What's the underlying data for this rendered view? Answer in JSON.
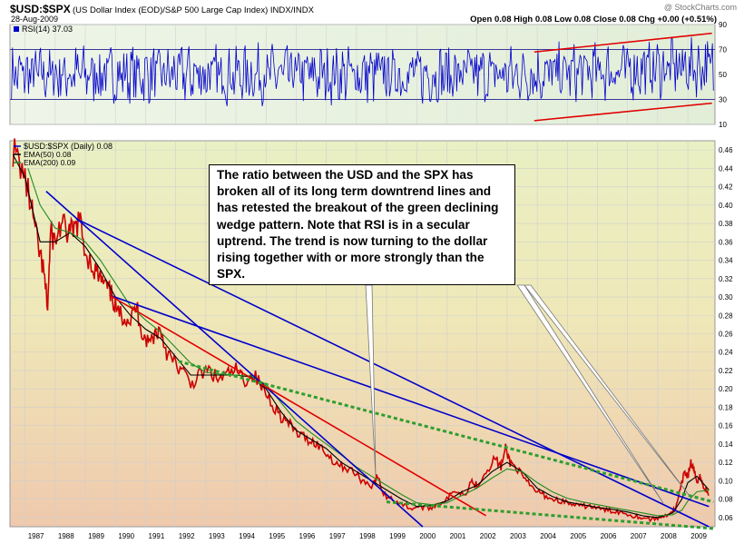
{
  "header": {
    "symbol": "$USD:$SPX",
    "description": "(US Dollar Index (EOD)/S&P 500 Large Cap Index) INDX/INDX",
    "date": "28-Aug-2009",
    "ohlc": "Open 0.08  High 0.08  Low 0.08  Close 0.08  Chg +0.00 (+0.51%)",
    "watermark": "@ StockCharts.com"
  },
  "rsi_panel": {
    "label": "RSI(14) 37.03",
    "y_ticks": [
      "90",
      "70",
      "50",
      "30",
      "10"
    ]
  },
  "annotation": "The ratio between the USD and the SPX has broken all of its long term downtrend lines and has retested the breakout of the green declining wedge pattern.  Note that RSI is in a secular uptrend.  The trend is now turning to the dollar rising together with or more strongly than the SPX.",
  "colors": {
    "price": "#cc0000",
    "ema50": "#000000",
    "ema200": "#228b22",
    "downtrend": "#0000cc",
    "trend_red": "#e00000",
    "wedge": "#2e9e2e",
    "rsi": "#0000cc"
  },
  "chart_data": [
    {
      "type": "line",
      "title": "",
      "series": [
        {
          "name": "RSI(14)",
          "color": "#0000cc"
        }
      ],
      "ylim": [
        10,
        90
      ],
      "reference_lines": [
        70,
        30
      ],
      "last_value": 37.03,
      "trendline_channel": {
        "upper": [
          [
            2003.9,
            68
          ],
          [
            2009.8,
            83
          ]
        ],
        "lower": [
          [
            2003.9,
            13
          ],
          [
            2009.8,
            27
          ]
        ]
      }
    },
    {
      "type": "line",
      "title": "",
      "x_ticks": [
        "1987",
        "1988",
        "1989",
        "1990",
        "1991",
        "1992",
        "1993",
        "1994",
        "1995",
        "1996",
        "1997",
        "1998",
        "1999",
        "2000",
        "2001",
        "2002",
        "2003",
        "2004",
        "2005",
        "2006",
        "2007",
        "2008",
        "2009"
      ],
      "y_ticks": [
        "0.46",
        "0.44",
        "0.42",
        "0.40",
        "0.38",
        "0.36",
        "0.34",
        "0.32",
        "0.30",
        "0.28",
        "0.26",
        "0.24",
        "0.22",
        "0.20",
        "0.18",
        "0.16",
        "0.14",
        "0.12",
        "0.10",
        "0.08",
        "0.06"
      ],
      "ylim": [
        0.05,
        0.47
      ],
      "legend": [
        "$USD:$SPX (Daily) 0.08",
        "EMA(50) 0.08",
        "EMA(200) 0.09"
      ],
      "series": [
        {
          "name": "$USD:$SPX (Daily)",
          "color": "#cc0000",
          "points": [
            [
              1986.6,
              0.46
            ],
            [
              1986.9,
              0.44
            ],
            [
              1987.2,
              0.4
            ],
            [
              1987.4,
              0.36
            ],
            [
              1987.6,
              0.33
            ],
            [
              1987.75,
              0.29
            ],
            [
              1987.85,
              0.37
            ],
            [
              1988.0,
              0.36
            ],
            [
              1988.2,
              0.38
            ],
            [
              1988.4,
              0.37
            ],
            [
              1988.6,
              0.37
            ],
            [
              1988.8,
              0.385
            ],
            [
              1989.0,
              0.35
            ],
            [
              1989.3,
              0.33
            ],
            [
              1989.5,
              0.32
            ],
            [
              1989.7,
              0.31
            ],
            [
              1989.9,
              0.3
            ],
            [
              1990.1,
              0.28
            ],
            [
              1990.3,
              0.28
            ],
            [
              1990.5,
              0.275
            ],
            [
              1990.7,
              0.29
            ],
            [
              1990.9,
              0.26
            ],
            [
              1991.1,
              0.25
            ],
            [
              1991.3,
              0.26
            ],
            [
              1991.5,
              0.265
            ],
            [
              1991.7,
              0.24
            ],
            [
              1991.9,
              0.23
            ],
            [
              1992.2,
              0.22
            ],
            [
              1992.5,
              0.205
            ],
            [
              1992.8,
              0.215
            ],
            [
              1993.1,
              0.22
            ],
            [
              1993.4,
              0.21
            ],
            [
              1993.7,
              0.215
            ],
            [
              1994.0,
              0.22
            ],
            [
              1994.3,
              0.21
            ],
            [
              1994.6,
              0.215
            ],
            [
              1994.9,
              0.2
            ],
            [
              1995.2,
              0.185
            ],
            [
              1995.5,
              0.17
            ],
            [
              1995.8,
              0.16
            ],
            [
              1996.1,
              0.15
            ],
            [
              1996.4,
              0.145
            ],
            [
              1996.7,
              0.14
            ],
            [
              1997.0,
              0.13
            ],
            [
              1997.3,
              0.12
            ],
            [
              1997.6,
              0.115
            ],
            [
              1997.9,
              0.11
            ],
            [
              1998.2,
              0.1
            ],
            [
              1998.5,
              0.095
            ],
            [
              1998.7,
              0.105
            ],
            [
              1998.9,
              0.085
            ],
            [
              1999.2,
              0.08
            ],
            [
              1999.5,
              0.075
            ],
            [
              1999.8,
              0.07
            ],
            [
              2000.1,
              0.072
            ],
            [
              2000.4,
              0.07
            ],
            [
              2000.7,
              0.075
            ],
            [
              2001.0,
              0.08
            ],
            [
              2001.3,
              0.09
            ],
            [
              2001.6,
              0.085
            ],
            [
              2001.8,
              0.1
            ],
            [
              2002.0,
              0.095
            ],
            [
              2002.3,
              0.11
            ],
            [
              2002.6,
              0.125
            ],
            [
              2002.8,
              0.115
            ],
            [
              2002.95,
              0.135
            ],
            [
              2003.1,
              0.12
            ],
            [
              2003.3,
              0.115
            ],
            [
              2003.6,
              0.1
            ],
            [
              2003.9,
              0.09
            ],
            [
              2004.2,
              0.085
            ],
            [
              2004.5,
              0.08
            ],
            [
              2004.8,
              0.078
            ],
            [
              2005.1,
              0.075
            ],
            [
              2005.4,
              0.072
            ],
            [
              2005.7,
              0.073
            ],
            [
              2006.0,
              0.07
            ],
            [
              2006.3,
              0.068
            ],
            [
              2006.6,
              0.067
            ],
            [
              2006.9,
              0.065
            ],
            [
              2007.2,
              0.062
            ],
            [
              2007.5,
              0.06
            ],
            [
              2007.8,
              0.058
            ],
            [
              2008.1,
              0.06
            ],
            [
              2008.4,
              0.065
            ],
            [
              2008.6,
              0.07
            ],
            [
              2008.75,
              0.09
            ],
            [
              2008.9,
              0.11
            ],
            [
              2009.0,
              0.105
            ],
            [
              2009.1,
              0.12
            ],
            [
              2009.2,
              0.11
            ],
            [
              2009.3,
              0.1
            ],
            [
              2009.4,
              0.105
            ],
            [
              2009.5,
              0.095
            ],
            [
              2009.6,
              0.09
            ],
            [
              2009.7,
              0.085
            ]
          ]
        },
        {
          "name": "EMA(50)",
          "color": "#000000",
          "points": [
            [
              1986.6,
              0.455
            ],
            [
              1987.0,
              0.43
            ],
            [
              1987.5,
              0.36
            ],
            [
              1988.0,
              0.36
            ],
            [
              1988.5,
              0.37
            ],
            [
              1989.0,
              0.355
            ],
            [
              1989.5,
              0.33
            ],
            [
              1990.0,
              0.3
            ],
            [
              1990.5,
              0.28
            ],
            [
              1991.0,
              0.265
            ],
            [
              1991.5,
              0.255
            ],
            [
              1992.0,
              0.235
            ],
            [
              1992.5,
              0.215
            ],
            [
              1993.0,
              0.215
            ],
            [
              1993.5,
              0.215
            ],
            [
              1994.0,
              0.215
            ],
            [
              1994.5,
              0.213
            ],
            [
              1995.0,
              0.2
            ],
            [
              1995.5,
              0.175
            ],
            [
              1996.0,
              0.155
            ],
            [
              1996.5,
              0.145
            ],
            [
              1997.0,
              0.135
            ],
            [
              1997.5,
              0.12
            ],
            [
              1998.0,
              0.11
            ],
            [
              1998.5,
              0.1
            ],
            [
              1999.0,
              0.09
            ],
            [
              1999.5,
              0.08
            ],
            [
              2000.0,
              0.072
            ],
            [
              2000.5,
              0.073
            ],
            [
              2001.0,
              0.078
            ],
            [
              2001.5,
              0.088
            ],
            [
              2002.0,
              0.095
            ],
            [
              2002.5,
              0.11
            ],
            [
              2003.0,
              0.12
            ],
            [
              2003.5,
              0.11
            ],
            [
              2004.0,
              0.092
            ],
            [
              2004.5,
              0.083
            ],
            [
              2005.0,
              0.077
            ],
            [
              2005.5,
              0.074
            ],
            [
              2006.0,
              0.071
            ],
            [
              2006.5,
              0.069
            ],
            [
              2007.0,
              0.066
            ],
            [
              2007.5,
              0.062
            ],
            [
              2008.0,
              0.06
            ],
            [
              2008.5,
              0.065
            ],
            [
              2008.8,
              0.08
            ],
            [
              2009.0,
              0.098
            ],
            [
              2009.3,
              0.105
            ],
            [
              2009.7,
              0.09
            ]
          ]
        },
        {
          "name": "EMA(200)",
          "color": "#228b22",
          "points": [
            [
              1987.1,
              0.44
            ],
            [
              1987.5,
              0.4
            ],
            [
              1988.0,
              0.375
            ],
            [
              1988.5,
              0.37
            ],
            [
              1989.0,
              0.36
            ],
            [
              1989.5,
              0.34
            ],
            [
              1990.0,
              0.315
            ],
            [
              1990.5,
              0.29
            ],
            [
              1991.0,
              0.275
            ],
            [
              1991.5,
              0.262
            ],
            [
              1992.0,
              0.245
            ],
            [
              1992.5,
              0.228
            ],
            [
              1993.0,
              0.218
            ],
            [
              1993.5,
              0.216
            ],
            [
              1994.0,
              0.215
            ],
            [
              1994.5,
              0.214
            ],
            [
              1995.0,
              0.205
            ],
            [
              1995.5,
              0.185
            ],
            [
              1996.0,
              0.165
            ],
            [
              1996.5,
              0.152
            ],
            [
              1997.0,
              0.14
            ],
            [
              1997.5,
              0.128
            ],
            [
              1998.0,
              0.115
            ],
            [
              1998.5,
              0.105
            ],
            [
              1999.0,
              0.095
            ],
            [
              1999.5,
              0.085
            ],
            [
              2000.0,
              0.076
            ],
            [
              2000.5,
              0.074
            ],
            [
              2001.0,
              0.076
            ],
            [
              2001.5,
              0.084
            ],
            [
              2002.0,
              0.092
            ],
            [
              2002.5,
              0.103
            ],
            [
              2003.0,
              0.113
            ],
            [
              2003.5,
              0.11
            ],
            [
              2004.0,
              0.098
            ],
            [
              2004.5,
              0.088
            ],
            [
              2005.0,
              0.081
            ],
            [
              2005.5,
              0.077
            ],
            [
              2006.0,
              0.074
            ],
            [
              2006.5,
              0.071
            ],
            [
              2007.0,
              0.068
            ],
            [
              2007.5,
              0.065
            ],
            [
              2008.0,
              0.062
            ],
            [
              2008.5,
              0.063
            ],
            [
              2008.8,
              0.068
            ],
            [
              2009.0,
              0.078
            ],
            [
              2009.3,
              0.088
            ],
            [
              2009.7,
              0.09
            ]
          ]
        }
      ],
      "trendlines": [
        {
          "color": "#0000cc",
          "style": "solid",
          "from": [
            1987.7,
            0.415
          ],
          "to": [
            2000.2,
            0.05
          ]
        },
        {
          "color": "#0000cc",
          "style": "solid",
          "from": [
            1988.7,
            0.385
          ],
          "to": [
            2009.7,
            0.05
          ]
        },
        {
          "color": "#0000cc",
          "style": "solid",
          "from": [
            1989.8,
            0.302
          ],
          "to": [
            2009.7,
            0.072
          ]
        },
        {
          "color": "#e00000",
          "style": "solid",
          "from": [
            1989.8,
            0.302
          ],
          "to": [
            2002.3,
            0.062
          ]
        },
        {
          "color": "#2e9e2e",
          "style": "dotted",
          "from": [
            1992.1,
            0.23
          ],
          "to": [
            2009.85,
            0.077
          ]
        },
        {
          "color": "#2e9e2e",
          "style": "dotted",
          "from": [
            1999.0,
            0.077
          ],
          "to": [
            2009.85,
            0.048
          ]
        }
      ]
    }
  ]
}
